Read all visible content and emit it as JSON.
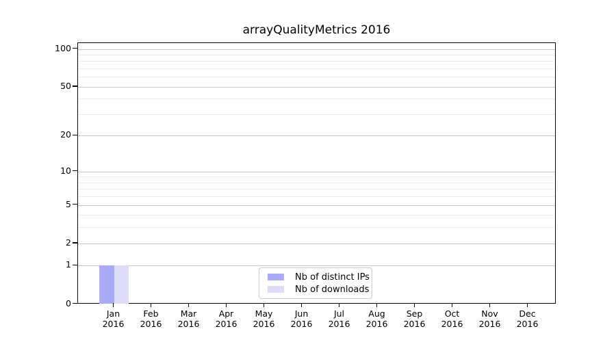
{
  "chart_data": {
    "type": "bar",
    "title": "arrayQualityMetrics 2016",
    "x_axis": {
      "categories": [
        "Jan",
        "Feb",
        "Mar",
        "Apr",
        "May",
        "Jun",
        "Jul",
        "Aug",
        "Sep",
        "Oct",
        "Nov",
        "Dec"
      ],
      "year_label": "2016"
    },
    "y_axis": {
      "scale": "log1p",
      "ticks": [
        0,
        1,
        2,
        5,
        10,
        20,
        50,
        100
      ],
      "minor_gridlines": [
        3,
        4,
        6,
        7,
        8,
        9,
        30,
        40,
        60,
        70,
        80,
        90
      ],
      "range_max_value": 110
    },
    "series": [
      {
        "name": "Nb of distinct IPs",
        "color": "#aaaaf7",
        "values": [
          1,
          0,
          0,
          0,
          0,
          0,
          0,
          0,
          0,
          0,
          0,
          0
        ]
      },
      {
        "name": "Nb of downloads",
        "color": "#dcdcf7",
        "values": [
          1,
          0,
          0,
          0,
          0,
          0,
          0,
          0,
          0,
          0,
          0,
          0
        ]
      }
    ],
    "legend": {
      "position": "bottom-center"
    },
    "colors": {
      "major_grid": "#c6c6c6",
      "minor_grid": "#ececec",
      "axis": "#000000",
      "background": "#ffffff",
      "text": "#000000"
    }
  }
}
